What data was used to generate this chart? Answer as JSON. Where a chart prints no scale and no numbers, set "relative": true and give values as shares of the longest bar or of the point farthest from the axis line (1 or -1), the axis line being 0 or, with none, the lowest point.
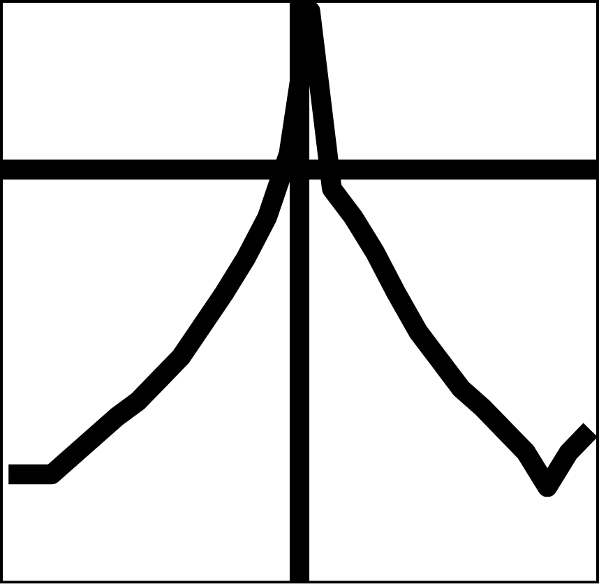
{
  "chart_data": {
    "type": "line",
    "relative": true,
    "color": "#000000",
    "categories": [
      null,
      null,
      null,
      null,
      null,
      null,
      null,
      null,
      null,
      null,
      null,
      null,
      null,
      null,
      null,
      null,
      null,
      null,
      null,
      null,
      null,
      null,
      null,
      null,
      null,
      null,
      null,
      null
    ],
    "values": [
      -0.96,
      -0.96,
      -0.96,
      -0.9,
      -0.84,
      -0.78,
      -0.73,
      -0.66,
      -0.59,
      -0.49,
      -0.39,
      -0.28,
      -0.15,
      0.05,
      0.5,
      -0.06,
      -0.15,
      -0.26,
      -0.39,
      -0.51,
      -0.6,
      -0.69,
      -0.75,
      -0.82,
      -0.89,
      -1,
      -0.89,
      -0.82
    ]
  }
}
